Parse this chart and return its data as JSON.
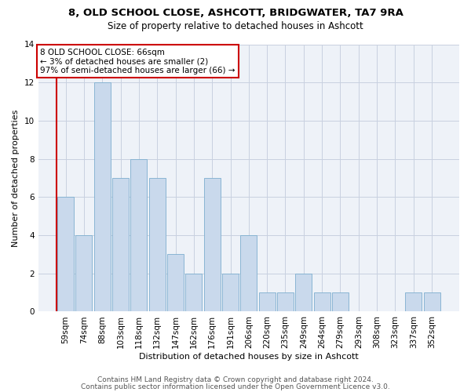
{
  "title1": "8, OLD SCHOOL CLOSE, ASHCOTT, BRIDGWATER, TA7 9RA",
  "title2": "Size of property relative to detached houses in Ashcott",
  "xlabel": "Distribution of detached houses by size in Ashcott",
  "ylabel": "Number of detached properties",
  "categories": [
    "59sqm",
    "74sqm",
    "88sqm",
    "103sqm",
    "118sqm",
    "132sqm",
    "147sqm",
    "162sqm",
    "176sqm",
    "191sqm",
    "206sqm",
    "220sqm",
    "235sqm",
    "249sqm",
    "264sqm",
    "279sqm",
    "293sqm",
    "308sqm",
    "323sqm",
    "337sqm",
    "352sqm"
  ],
  "values": [
    6,
    4,
    12,
    7,
    8,
    7,
    3,
    2,
    7,
    2,
    4,
    1,
    1,
    2,
    1,
    1,
    0,
    0,
    0,
    1,
    1
  ],
  "bar_color": "#c9d9ec",
  "bar_edge_color": "#7daecf",
  "grid_color": "#c8d0e0",
  "background_color": "#eef2f8",
  "annotation_box_text": "8 OLD SCHOOL CLOSE: 66sqm\n← 3% of detached houses are smaller (2)\n97% of semi-detached houses are larger (66) →",
  "annotation_box_color": "#cc0000",
  "subject_line_color": "#cc0000",
  "ylim": [
    0,
    14
  ],
  "yticks": [
    0,
    2,
    4,
    6,
    8,
    10,
    12,
    14
  ],
  "footer1": "Contains HM Land Registry data © Crown copyright and database right 2024.",
  "footer2": "Contains public sector information licensed under the Open Government Licence v3.0.",
  "title1_fontsize": 9.5,
  "title2_fontsize": 8.5,
  "xlabel_fontsize": 8,
  "ylabel_fontsize": 8,
  "tick_fontsize": 7.5,
  "annotation_fontsize": 7.5,
  "footer_fontsize": 6.5
}
